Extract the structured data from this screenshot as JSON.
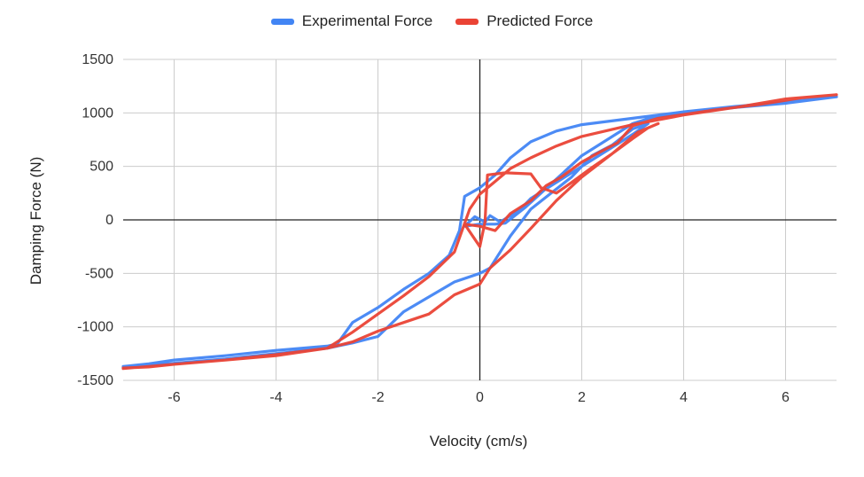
{
  "chart_data": {
    "type": "line",
    "title": "",
    "xlabel": "Velocity (cm/s)",
    "ylabel": "Damping Force (N)",
    "xlim": [
      -7,
      7
    ],
    "ylim": [
      -1500,
      1500
    ],
    "x_ticks": [
      -6,
      -4,
      -2,
      0,
      2,
      4,
      6
    ],
    "y_ticks": [
      1500,
      1000,
      500,
      0,
      -500,
      -1000,
      -1500
    ],
    "grid": true,
    "legend_position": "top-center",
    "series": [
      {
        "name": "Experimental Force",
        "color": "#4285f4",
        "points": [
          [
            -7,
            -1370
          ],
          [
            -6.5,
            -1345
          ],
          [
            -6,
            -1310
          ],
          [
            -5,
            -1270
          ],
          [
            -4,
            -1220
          ],
          [
            -3,
            -1180
          ],
          [
            -2.8,
            -1160
          ],
          [
            -2.5,
            -960
          ],
          [
            -2,
            -820
          ],
          [
            -1.5,
            -650
          ],
          [
            -1,
            -500
          ],
          [
            -0.6,
            -330
          ],
          [
            -0.4,
            -100
          ],
          [
            -0.3,
            220
          ],
          [
            0,
            300
          ],
          [
            0.3,
            420
          ],
          [
            0.6,
            580
          ],
          [
            1,
            730
          ],
          [
            1.5,
            830
          ],
          [
            2,
            890
          ],
          [
            3,
            950
          ],
          [
            4,
            1010
          ],
          [
            5,
            1060
          ],
          [
            6,
            1100
          ],
          [
            7,
            1150
          ],
          [
            6,
            1090
          ],
          [
            5,
            1050
          ],
          [
            4,
            1000
          ],
          [
            3.4,
            960
          ],
          [
            3,
            900
          ],
          [
            2.5,
            750
          ],
          [
            2,
            600
          ],
          [
            1.5,
            380
          ],
          [
            1.2,
            250
          ],
          [
            0.9,
            120
          ],
          [
            0.5,
            -30
          ],
          [
            0.3,
            -40
          ],
          [
            0,
            -40
          ],
          [
            -0.3,
            -60
          ],
          [
            -0.1,
            30
          ],
          [
            0.1,
            -20
          ],
          [
            0.2,
            40
          ],
          [
            0.4,
            -20
          ],
          [
            0.8,
            100
          ],
          [
            1,
            200
          ],
          [
            1.5,
            350
          ],
          [
            2,
            500
          ],
          [
            2.5,
            650
          ],
          [
            3,
            800
          ],
          [
            3.3,
            900
          ],
          [
            3,
            850
          ],
          [
            2.6,
            700
          ],
          [
            2.2,
            600
          ],
          [
            1.8,
            400
          ],
          [
            1.4,
            250
          ],
          [
            1,
            100
          ],
          [
            0.6,
            -150
          ],
          [
            0.4,
            -300
          ],
          [
            0.2,
            -450
          ],
          [
            0,
            -500
          ],
          [
            -0.5,
            -580
          ],
          [
            -1,
            -720
          ],
          [
            -1.5,
            -860
          ],
          [
            -2,
            -1090
          ],
          [
            -2.5,
            -1150
          ],
          [
            -3,
            -1200
          ],
          [
            -4,
            -1250
          ],
          [
            -5,
            -1300
          ],
          [
            -6,
            -1340
          ],
          [
            -7,
            -1380
          ]
        ]
      },
      {
        "name": "Predicted Force",
        "color": "#ea4335",
        "points": [
          [
            -7,
            -1385
          ],
          [
            -6.5,
            -1375
          ],
          [
            -6,
            -1350
          ],
          [
            -5,
            -1310
          ],
          [
            -4,
            -1260
          ],
          [
            -3,
            -1200
          ],
          [
            -2.5,
            -1050
          ],
          [
            -2,
            -880
          ],
          [
            -1.5,
            -710
          ],
          [
            -1,
            -530
          ],
          [
            -0.5,
            -300
          ],
          [
            -0.2,
            100
          ],
          [
            0,
            240
          ],
          [
            0.3,
            360
          ],
          [
            0.6,
            480
          ],
          [
            1,
            580
          ],
          [
            1.5,
            690
          ],
          [
            2,
            780
          ],
          [
            3,
            890
          ],
          [
            4,
            980
          ],
          [
            5,
            1050
          ],
          [
            6,
            1130
          ],
          [
            7,
            1170
          ],
          [
            6.3,
            1140
          ],
          [
            5.5,
            1080
          ],
          [
            4.5,
            1020
          ],
          [
            3.5,
            950
          ],
          [
            3,
            880
          ],
          [
            2.7,
            720
          ],
          [
            2.3,
            620
          ],
          [
            2,
            540
          ],
          [
            1.6,
            400
          ],
          [
            1.3,
            320
          ],
          [
            1,
            180
          ],
          [
            0.6,
            60
          ],
          [
            0.3,
            -100
          ],
          [
            0,
            -60
          ],
          [
            -0.3,
            -40
          ],
          [
            0,
            -250
          ],
          [
            0.1,
            -20
          ],
          [
            0.15,
            420
          ],
          [
            0.5,
            440
          ],
          [
            1,
            430
          ],
          [
            1.2,
            300
          ],
          [
            1.5,
            250
          ],
          [
            1.8,
            350
          ],
          [
            2.2,
            490
          ],
          [
            2.6,
            620
          ],
          [
            3,
            760
          ],
          [
            3.3,
            860
          ],
          [
            3.5,
            900
          ],
          [
            3.1,
            820
          ],
          [
            2.6,
            620
          ],
          [
            2,
            400
          ],
          [
            1.5,
            180
          ],
          [
            1,
            -80
          ],
          [
            0.6,
            -280
          ],
          [
            0.2,
            -450
          ],
          [
            0,
            -600
          ],
          [
            -0.5,
            -700
          ],
          [
            -1,
            -880
          ],
          [
            -1.5,
            -960
          ],
          [
            -2,
            -1040
          ],
          [
            -2.5,
            -1140
          ],
          [
            -3,
            -1200
          ],
          [
            -4,
            -1270
          ],
          [
            -5,
            -1310
          ],
          [
            -6,
            -1350
          ],
          [
            -6.5,
            -1370
          ],
          [
            -7,
            -1390
          ]
        ]
      }
    ]
  }
}
